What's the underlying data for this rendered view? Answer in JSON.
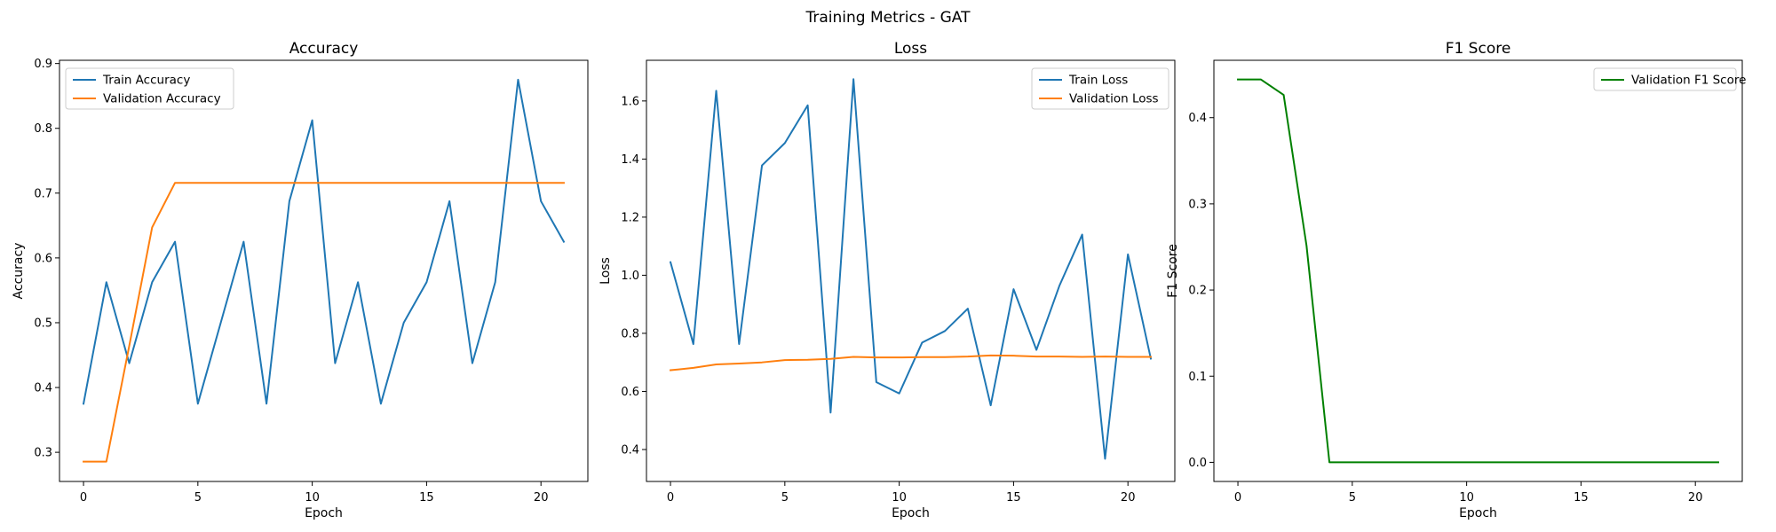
{
  "figure": {
    "title": "Training Metrics - GAT"
  },
  "chart_data": [
    {
      "type": "line",
      "title": "Accuracy",
      "xlabel": "Epoch",
      "ylabel": "Accuracy",
      "xlim": [
        -1.05,
        22.05
      ],
      "ylim": [
        0.255,
        0.905
      ],
      "xticks": [
        0,
        5,
        10,
        15,
        20
      ],
      "yticks": [
        0.3,
        0.4,
        0.5,
        0.6,
        0.7,
        0.8,
        0.9
      ],
      "ytick_decimals": 1,
      "legend": "upper-left",
      "grid": false,
      "x": [
        0,
        1,
        2,
        3,
        4,
        5,
        6,
        7,
        8,
        9,
        10,
        11,
        12,
        13,
        14,
        15,
        16,
        17,
        18,
        19,
        20,
        21
      ],
      "series": [
        {
          "name": "Train Accuracy",
          "color": "#1f77b4",
          "values": [
            0.375,
            0.5625,
            0.4375,
            0.5625,
            0.625,
            0.375,
            0.5,
            0.625,
            0.375,
            0.6875,
            0.8125,
            0.4375,
            0.5625,
            0.375,
            0.5,
            0.5625,
            0.6875,
            0.4375,
            0.5625,
            0.875,
            0.6875,
            0.625
          ]
        },
        {
          "name": "Validation Accuracy",
          "color": "#ff7f0e",
          "values": [
            0.2857,
            0.2857,
            0.4643,
            0.6471,
            0.7159,
            0.7159,
            0.7159,
            0.7159,
            0.7159,
            0.7159,
            0.7159,
            0.7159,
            0.7159,
            0.7159,
            0.7159,
            0.7159,
            0.7159,
            0.7159,
            0.7159,
            0.7159,
            0.7159,
            0.7159
          ]
        }
      ]
    },
    {
      "type": "line",
      "title": "Loss",
      "xlabel": "Epoch",
      "ylabel": "Loss",
      "xlim": [
        -1.05,
        22.05
      ],
      "ylim": [
        0.29,
        1.74
      ],
      "xticks": [
        0,
        5,
        10,
        15,
        20
      ],
      "yticks": [
        0.4,
        0.6,
        0.8,
        1.0,
        1.2,
        1.4,
        1.6
      ],
      "ytick_decimals": 1,
      "legend": "upper-right",
      "grid": false,
      "x": [
        0,
        1,
        2,
        3,
        4,
        5,
        6,
        7,
        8,
        9,
        10,
        11,
        12,
        13,
        14,
        15,
        16,
        17,
        18,
        19,
        20,
        21
      ],
      "series": [
        {
          "name": "Train Loss",
          "color": "#1f77b4",
          "values": [
            1.045,
            0.763,
            1.635,
            0.763,
            1.378,
            1.455,
            1.585,
            0.527,
            1.675,
            0.632,
            0.593,
            0.768,
            0.808,
            0.885,
            0.552,
            0.952,
            0.743,
            0.963,
            1.14,
            0.368,
            1.072,
            0.713
          ]
        },
        {
          "name": "Validation Loss",
          "color": "#ff7f0e",
          "values": [
            0.673,
            0.681,
            0.693,
            0.696,
            0.7,
            0.708,
            0.709,
            0.712,
            0.719,
            0.717,
            0.717,
            0.718,
            0.718,
            0.72,
            0.724,
            0.723,
            0.72,
            0.72,
            0.719,
            0.72,
            0.719,
            0.719
          ]
        }
      ]
    },
    {
      "type": "line",
      "title": "F1 Score",
      "xlabel": "Epoch",
      "ylabel": "F1 Score",
      "xlim": [
        -1.05,
        22.05
      ],
      "ylim": [
        -0.0222,
        0.4666
      ],
      "xticks": [
        0,
        5,
        10,
        15,
        20
      ],
      "yticks": [
        0.0,
        0.1,
        0.2,
        0.3,
        0.4
      ],
      "ytick_decimals": 1,
      "legend": "upper-right",
      "grid": false,
      "x": [
        0,
        1,
        2,
        3,
        4,
        5,
        6,
        7,
        8,
        9,
        10,
        11,
        12,
        13,
        14,
        15,
        16,
        17,
        18,
        19,
        20,
        21
      ],
      "series": [
        {
          "name": "Validation F1 Score",
          "color": "#008000",
          "values": [
            0.4444,
            0.4444,
            0.4264,
            0.2514,
            0.0,
            0.0,
            0.0,
            0.0,
            0.0,
            0.0,
            0.0,
            0.0,
            0.0,
            0.0,
            0.0,
            0.0,
            0.0,
            0.0,
            0.0,
            0.0,
            0.0,
            0.0
          ]
        }
      ]
    }
  ]
}
